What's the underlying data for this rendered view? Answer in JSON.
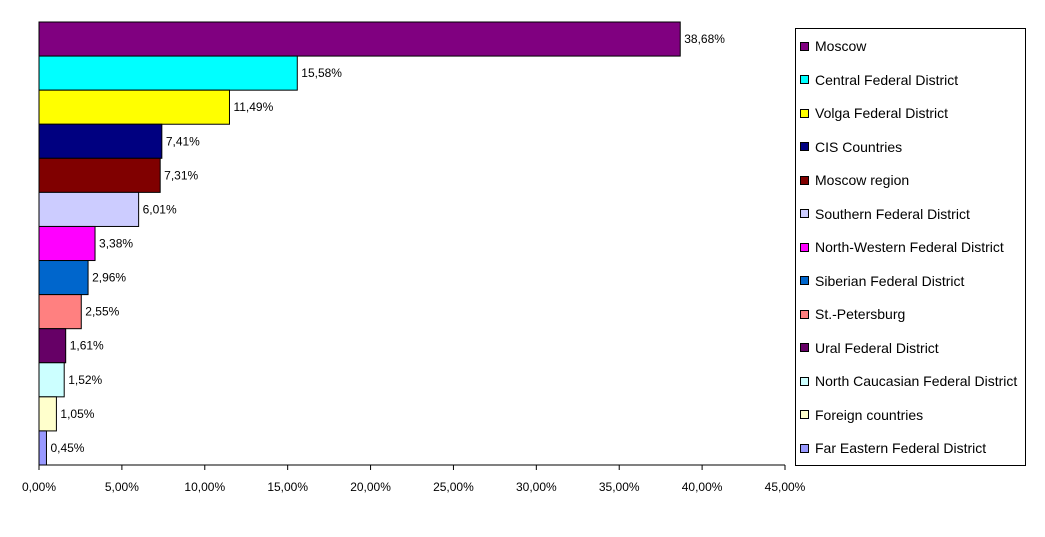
{
  "chart_data": {
    "type": "bar",
    "orientation": "horizontal",
    "categories": [
      "Moscow",
      "Central Federal District",
      "Volga Federal District",
      "CIS Countries",
      "Moscow region",
      "Southern Federal District",
      "North-Western Federal District",
      "Siberian Federal District",
      "St.-Petersburg",
      "Ural Federal District",
      "North Caucasian Federal District",
      "Foreign countries",
      "Far Eastern Federal District"
    ],
    "values": [
      38.68,
      15.58,
      11.49,
      7.41,
      7.31,
      6.01,
      3.38,
      2.96,
      2.55,
      1.61,
      1.52,
      1.05,
      0.45
    ],
    "data_labels": [
      "38,68%",
      "15,58%",
      "11,49%",
      "7,41%",
      "7,31%",
      "6,01%",
      "3,38%",
      "2,96%",
      "2,55%",
      "1,61%",
      "1,52%",
      "1,05%",
      "0,45%"
    ],
    "colors": [
      "#800080",
      "#00FFFF",
      "#FFFF00",
      "#000080",
      "#800000",
      "#CCCCFF",
      "#FF00FF",
      "#0066CC",
      "#FF8080",
      "#660066",
      "#CCFFFF",
      "#FFFFCC",
      "#9999FF"
    ],
    "xlim": [
      0,
      45
    ],
    "xticks": [
      "0,00%",
      "5,00%",
      "10,00%",
      "15,00%",
      "20,00%",
      "25,00%",
      "30,00%",
      "35,00%",
      "40,00%",
      "45,00%"
    ],
    "title": "",
    "xlabel": "",
    "ylabel": "",
    "grid": false,
    "legend_position": "right"
  }
}
